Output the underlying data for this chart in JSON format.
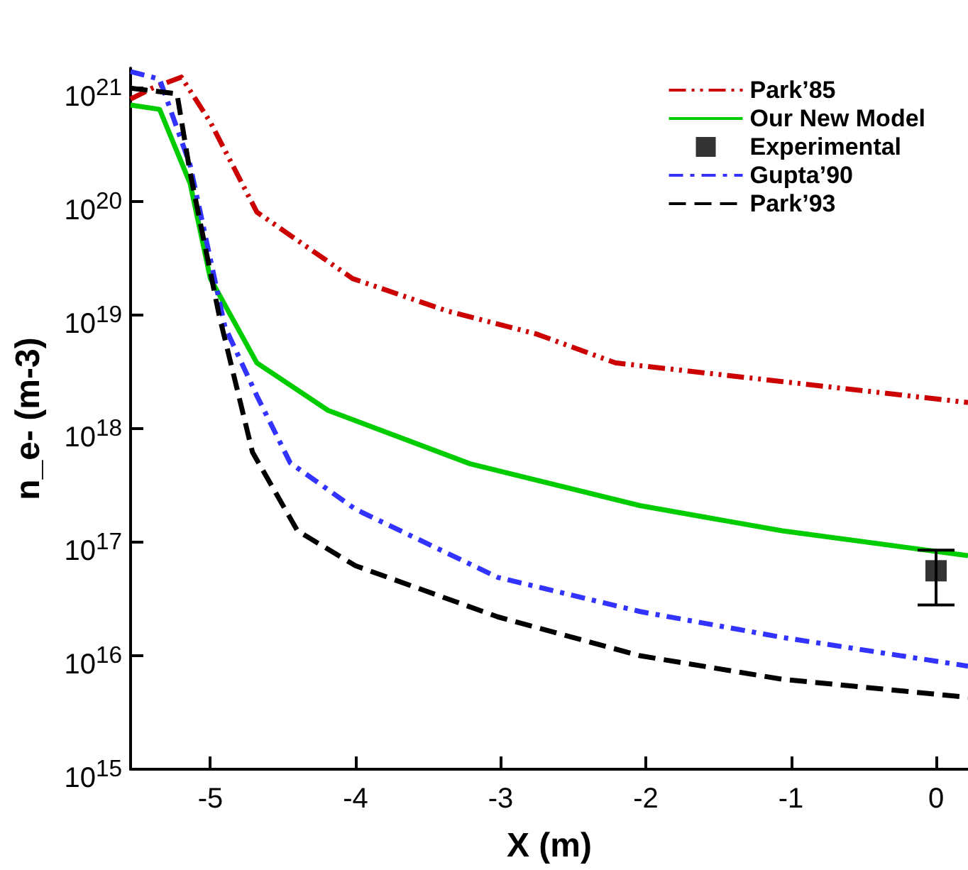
{
  "chart_data": {
    "type": "line",
    "xlabel": "X (m)",
    "ylabel": "n_e- (m-3)",
    "log": "y",
    "legend": "top right",
    "grid": false,
    "xlim": [
      -5.55,
      0.22
    ],
    "xticks": [
      -5,
      -4,
      -3,
      -2,
      -1,
      0
    ],
    "ylim": [
      1000000000000000.0,
      1.5e+21
    ],
    "yticks": [
      {
        "value": 1000000000000000.0,
        "label": "10$^{15}$"
      },
      {
        "value": 1e+16,
        "label": "10$^{16}$"
      },
      {
        "value": 1e+17,
        "label": "10$^{17}$"
      },
      {
        "value": 1e+18,
        "label": "10$^{18}$"
      },
      {
        "value": 1e+19,
        "label": "10$^{19}$"
      },
      {
        "value": 1e+20,
        "label": "10$^{20}$"
      },
      {
        "value": 1e+21,
        "label": "10$^{21}$"
      }
    ],
    "series": [
      {
        "name": "Park’85",
        "color": "#cc0000",
        "line_style": "dashdotdot",
        "marker": "none",
        "x": [
          -5.55,
          -5.4,
          -5.2,
          -5.0,
          -4.68,
          -4.36,
          -4.02,
          -3.38,
          -2.75,
          -2.21,
          -1.06,
          0.22
        ],
        "values": [
          8e+20,
          1e+21,
          1.25e+21,
          5e+20,
          8.1e+19,
          4.2e+19,
          2.1e+19,
          1.1e+19,
          6.8e+18,
          3.8e+18,
          2.6e+18,
          1.7e+18
        ]
      },
      {
        "name": "Our New Model",
        "color": "#00cc00",
        "line_style": "solid",
        "marker": "none",
        "x": [
          -5.55,
          -5.35,
          -5.14,
          -5.0,
          -4.68,
          -4.19,
          -3.21,
          -2.04,
          -1.06,
          0.22
        ],
        "values": [
          7.1e+20,
          6.5e+20,
          1.45e+20,
          2.1e+19,
          3.8e+18,
          1.45e+18,
          4.9e+17,
          2.1e+17,
          1.26e+17,
          7.6e+16
        ]
      },
      {
        "name": "Experimental",
        "type": "scatter",
        "color": "#000000",
        "marker": "square",
        "x": [
          0
        ],
        "values": [
          5.6e+16
        ],
        "errors": [
          [
            2.8e+16,
            8.5e+16
          ]
        ]
      },
      {
        "name": "Gupta’90",
        "color": "#3333ff",
        "line_style": "dashdot",
        "marker": "none",
        "x": [
          -5.55,
          -5.35,
          -5.14,
          -4.9,
          -4.68,
          -4.45,
          -4.0,
          -3.02,
          -2.04,
          -1.06,
          0.22
        ],
        "values": [
          1.4e+21,
          1.2e+21,
          2.1e+20,
          7.9e+18,
          1.95e+18,
          5e+17,
          1.95e+17,
          4.9e+16,
          2.45e+16,
          1.45e+16,
          8100000000000000.0
        ]
      },
      {
        "name": "Park’93",
        "color": "#000000",
        "line_style": "dashed",
        "marker": "none",
        "x": [
          -5.55,
          -5.23,
          -5.14,
          -4.94,
          -4.71,
          -4.4,
          -4.0,
          -3.02,
          -2.04,
          -1.06,
          0.22
        ],
        "values": [
          1e+21,
          8.9e+20,
          1.8e+20,
          1e+19,
          6.2e+17,
          1.26e+17,
          6.2e+16,
          2.2e+16,
          1e+16,
          6200000000000000.0,
          4300000000000000.0
        ]
      }
    ]
  }
}
